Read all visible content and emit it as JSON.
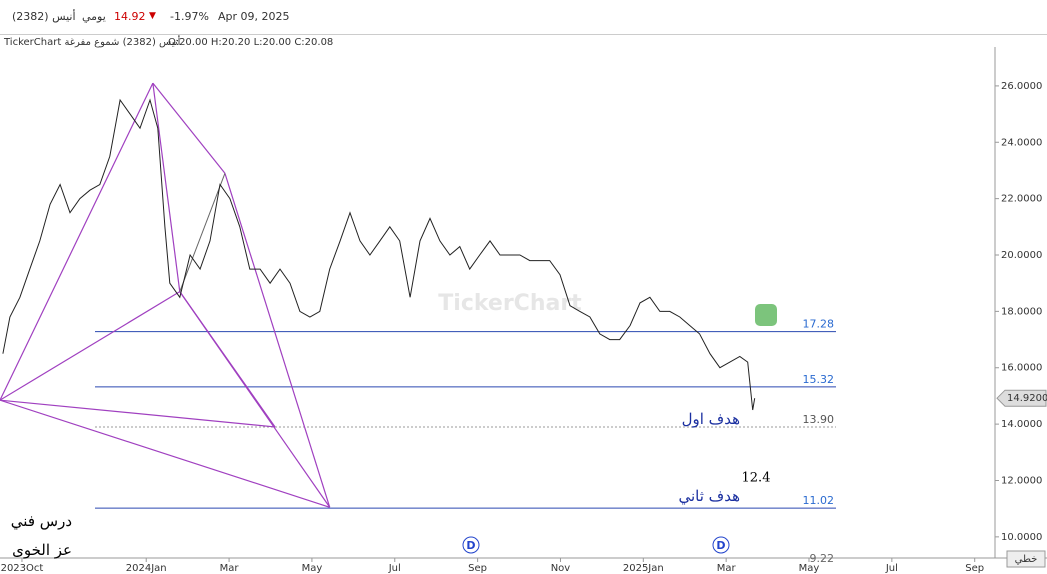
{
  "header": {
    "name": "أنيس (2382)",
    "period": "يومي",
    "price": "14.92",
    "change": "-1.97%",
    "date": "Apr 09, 2025"
  },
  "chart_data": {
    "type": "line",
    "title": "TickerChart أنيس (2382) شموع مفرغة",
    "ohlc": "O:20.00 H:20.20 L:20.00 C:20.08",
    "watermark": "TickerChart",
    "scale_mode": "خطي",
    "x": [
      -0.46,
      -0.29,
      -0.05,
      0.19,
      0.43,
      0.68,
      0.92,
      1.16,
      1.4,
      1.64,
      1.88,
      2.12,
      2.37,
      2.61,
      2.85,
      3.09,
      3.28,
      3.45,
      3.57,
      3.81,
      4.06,
      4.3,
      4.54,
      4.78,
      5.02,
      5.26,
      5.5,
      5.75,
      5.99,
      6.23,
      6.47,
      6.71,
      6.95,
      7.19,
      7.43,
      7.68,
      7.92,
      8.16,
      8.4,
      8.64,
      8.88,
      9.12,
      9.37,
      9.61,
      9.85,
      10.09,
      10.33,
      10.57,
      10.81,
      11.05,
      11.3,
      11.54,
      11.78,
      12.02,
      12.26,
      12.5,
      12.74,
      12.99,
      13.23,
      13.47,
      13.71,
      13.95,
      14.19,
      14.43,
      14.68,
      14.92,
      15.16,
      15.4,
      15.64,
      15.88,
      16.12,
      16.36,
      16.61,
      16.85,
      17.09,
      17.33,
      17.52,
      17.64,
      17.69
    ],
    "values": [
      16.5,
      17.8,
      18.5,
      19.5,
      20.5,
      21.8,
      22.5,
      21.5,
      22,
      22.3,
      22.5,
      23.5,
      25.5,
      25,
      24.5,
      25.5,
      24.5,
      21,
      19,
      18.5,
      20,
      19.5,
      20.5,
      22.5,
      22,
      21,
      19.5,
      19.5,
      19,
      19.5,
      19,
      18,
      17.8,
      18,
      19.5,
      20.5,
      21.5,
      20.5,
      20,
      20.5,
      21,
      20.5,
      18.5,
      20.5,
      21.3,
      20.5,
      20,
      20.3,
      19.5,
      20,
      20.5,
      20,
      20,
      20,
      19.8,
      19.8,
      19.8,
      19.3,
      18.2,
      18,
      17.8,
      17.2,
      17,
      17,
      17.5,
      18.3,
      18.5,
      18,
      18,
      17.8,
      17.5,
      17.2,
      16.5,
      16,
      16.2,
      16.4,
      16.2,
      14.5,
      14.92
    ],
    "color": "#222222",
    "xlim": [
      -0.53,
      23.49
    ],
    "xticks": [
      {
        "value": 0,
        "label": "2023Oct"
      },
      {
        "value": 3,
        "label": "2024Jan"
      },
      {
        "value": 5,
        "label": "Mar"
      },
      {
        "value": 7,
        "label": "May"
      },
      {
        "value": 9,
        "label": "Jul"
      },
      {
        "value": 11,
        "label": "Sep"
      },
      {
        "value": 13,
        "label": "Nov"
      },
      {
        "value": 15,
        "label": "2025Jan"
      },
      {
        "value": 17,
        "label": "Mar"
      },
      {
        "value": 19,
        "label": "May"
      },
      {
        "value": 21,
        "label": "Jul"
      },
      {
        "value": 23,
        "label": "Sep"
      }
    ],
    "ylim": [
      9.25,
      27.38
    ],
    "yticks": [
      {
        "value": 10,
        "label": "10.0000"
      },
      {
        "value": 12,
        "label": "12.0000"
      },
      {
        "value": 14,
        "label": "14.0000"
      },
      {
        "value": 16,
        "label": "16.0000"
      },
      {
        "value": 18,
        "label": "18.0000"
      },
      {
        "value": 20,
        "label": "20.0000"
      },
      {
        "value": 22,
        "label": "22.0000"
      },
      {
        "value": 24,
        "label": "24.0000"
      },
      {
        "value": 26,
        "label": "26.0000"
      }
    ],
    "last_price": {
      "value": 14.92,
      "label": "14.9200"
    },
    "levels": [
      17.28,
      15.32,
      {
        "value": 13.9,
        "label": "13.90"
      },
      11.02
    ],
    "bottom_level": 9.22,
    "pattern": {
      "color": "#a040c0",
      "points": [
        [
          -0.53,
          14.85
        ],
        [
          3.16,
          26.1
        ],
        [
          3.81,
          18.7
        ],
        [
          4.9,
          22.9
        ],
        [
          7.43,
          11.05
        ],
        [
          6.11,
          13.9
        ]
      ]
    },
    "annotations": [
      "هدف اول",
      "هدف ثاني",
      "12.4",
      "درس فني",
      "عز الخوى"
    ]
  }
}
